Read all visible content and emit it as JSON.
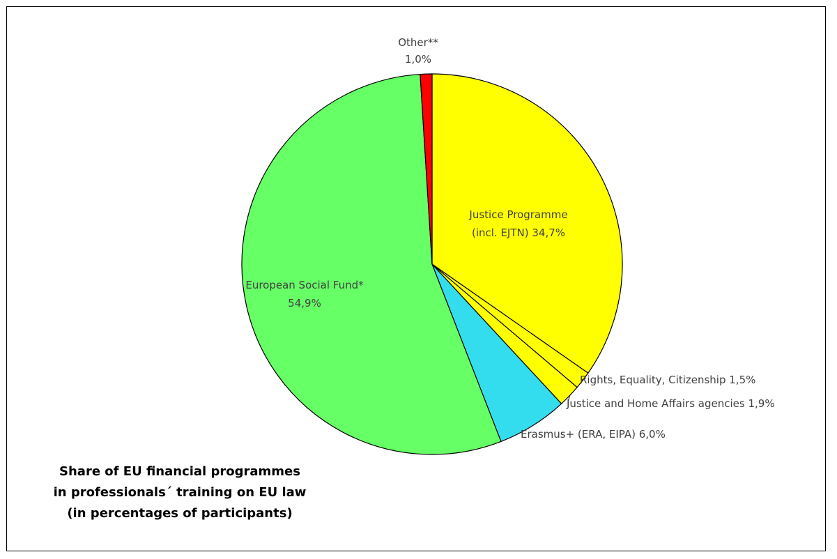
{
  "chart_data": {
    "type": "pie",
    "title": [
      "Share of EU financial programmes",
      "in professionals´ training on EU law",
      "(in percentages of participants)"
    ],
    "slices": [
      {
        "label": "Justice Programme (incl. EJTN) 34,7%",
        "label_lines": [
          "Justice Programme",
          "(incl. EJTN) 34,7%"
        ],
        "value": 34.7,
        "color": "#ffff00"
      },
      {
        "label": "Rights, Equality, Citizenship 1,5%",
        "label_lines": [
          "Rights, Equality, Citizenship 1,5%"
        ],
        "value": 1.5,
        "color": "#ffff00"
      },
      {
        "label": "Justice and Home Affairs agencies 1,9%",
        "label_lines": [
          "Justice and Home Affairs agencies 1,9%"
        ],
        "value": 1.9,
        "color": "#ffff00"
      },
      {
        "label": "Erasmus+ (ERA, EIPA) 6,0%",
        "label_lines": [
          "Erasmus+ (ERA, EIPA) 6,0%"
        ],
        "value": 6.0,
        "color": "#33ddee"
      },
      {
        "label": "European Social Fund* 54,9%",
        "label_lines": [
          "European Social Fund*",
          "54,9%"
        ],
        "value": 54.9,
        "color": "#66ff66"
      },
      {
        "label": "Other** 1,0%",
        "label_lines": [
          "Other**",
          "1,0%"
        ],
        "value": 1.0,
        "color": "#ff0000"
      }
    ],
    "start_angle": "12 o'clock",
    "direction": "clockwise",
    "legend": "none"
  }
}
